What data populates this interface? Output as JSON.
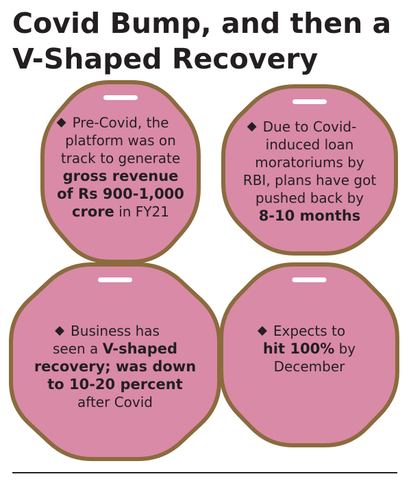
{
  "title": [
    "Covid Bump, and then a",
    "V-Shaped Recovery"
  ],
  "cards": [
    {
      "lines": [
        [
          {
            "text": "Pre-Covid, the"
          }
        ],
        [
          {
            "text": "platform was on"
          }
        ],
        [
          {
            "text": "track to generate"
          }
        ],
        [
          {
            "text": "gross revenue",
            "bold": true
          }
        ],
        [
          {
            "text": "of Rs 900-1,000",
            "bold": true
          }
        ],
        [
          {
            "text": "crore",
            "bold": true
          },
          {
            "text": " in FY21"
          }
        ]
      ]
    },
    {
      "lines": [
        [
          {
            "text": "Due to Covid-"
          }
        ],
        [
          {
            "text": "induced loan"
          }
        ],
        [
          {
            "text": "moratoriums by"
          }
        ],
        [
          {
            "text": "RBI, plans have got"
          }
        ],
        [
          {
            "text": "pushed back by"
          }
        ],
        [
          {
            "text": "8-10 months",
            "bold": true
          }
        ]
      ]
    },
    {
      "lines": [
        [
          {
            "text": "Business has"
          }
        ],
        [
          {
            "text": "seen a "
          },
          {
            "text": "V-shaped",
            "bold": true
          }
        ],
        [
          {
            "text": "recovery; was down",
            "bold": true
          }
        ],
        [
          {
            "text": "to 10-20 percent",
            "bold": true
          }
        ],
        [
          {
            "text": "after Covid"
          }
        ]
      ]
    },
    {
      "lines": [
        [
          {
            "text": "Expects to"
          }
        ],
        [
          {
            "text": "hit 100%",
            "bold": true
          },
          {
            "text": " by"
          }
        ],
        [
          {
            "text": "December"
          }
        ]
      ]
    }
  ]
}
